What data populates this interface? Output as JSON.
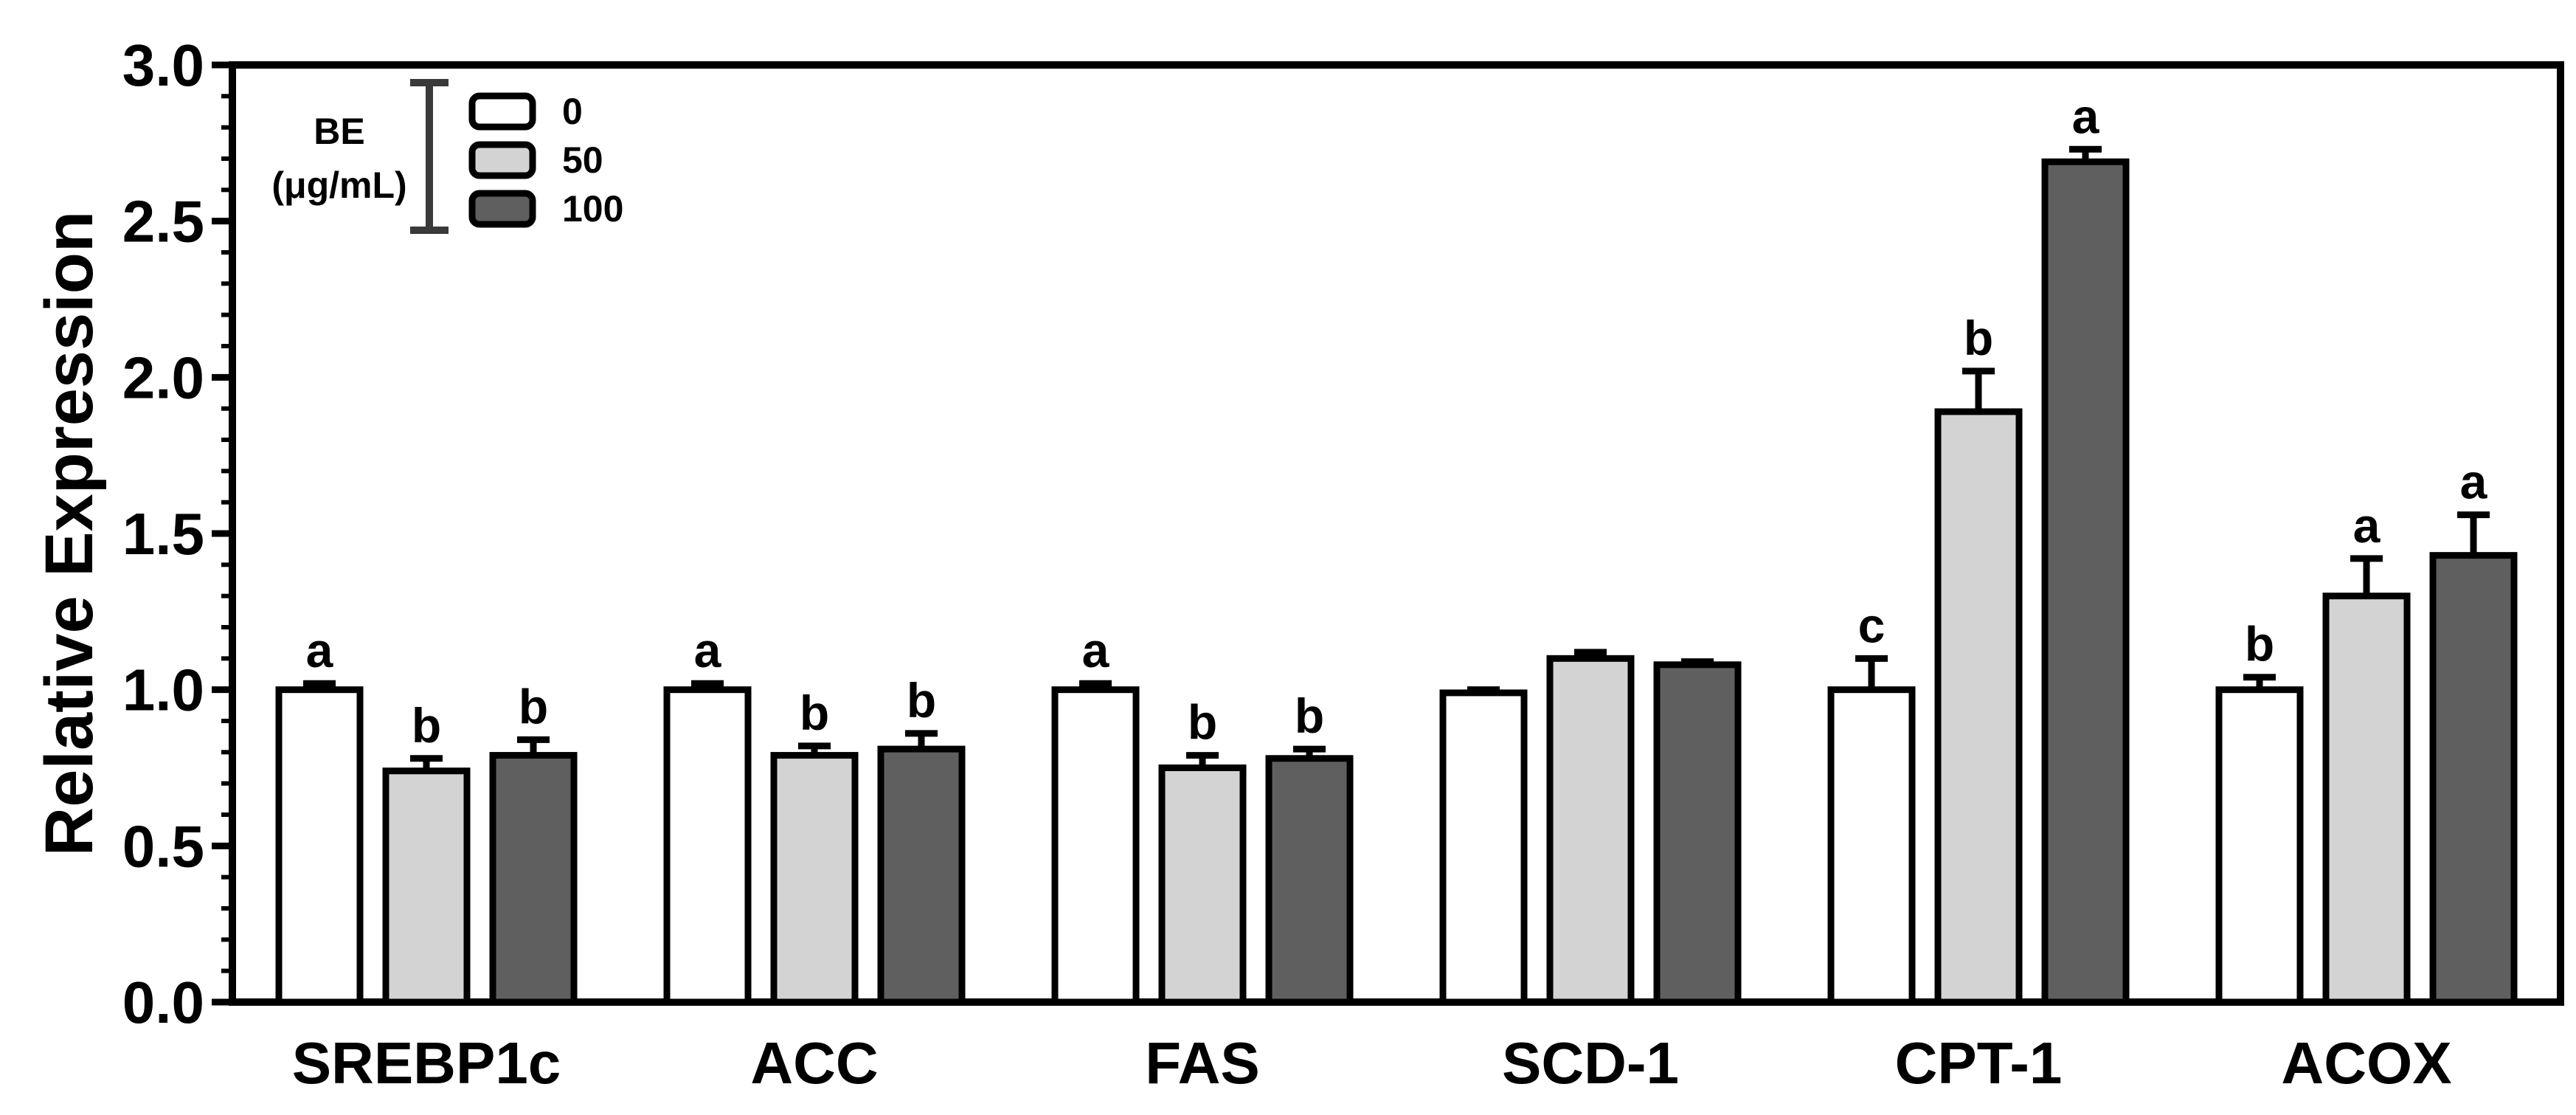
{
  "chart_data": {
    "type": "bar",
    "title": "",
    "xlabel": "",
    "ylabel": "Relative Expression",
    "ylim": [
      0,
      3.0
    ],
    "yticks": [
      "0.0",
      "0.5",
      "1.0",
      "1.5",
      "2.0",
      "2.5",
      "3.0"
    ],
    "grid": false,
    "legend_position": "top-left",
    "legend_title_lines": [
      "BE",
      "(μg/mL)"
    ],
    "categories": [
      "SREBP1c",
      "ACC",
      "FAS",
      "SCD-1",
      "CPT-1",
      "ACOX"
    ],
    "series": [
      {
        "name": "0",
        "color": "#ffffff",
        "values": [
          1.0,
          1.0,
          1.0,
          0.99,
          1.0,
          1.0
        ],
        "errors": [
          0.02,
          0.02,
          0.02,
          0.01,
          0.1,
          0.04
        ],
        "labels": [
          "a",
          "a",
          "a",
          "",
          "c",
          "b"
        ]
      },
      {
        "name": "50",
        "color": "#d3d3d3",
        "values": [
          0.74,
          0.79,
          0.75,
          1.1,
          1.89,
          1.3
        ],
        "errors": [
          0.04,
          0.03,
          0.04,
          0.02,
          0.13,
          0.12
        ],
        "labels": [
          "b",
          "b",
          "b",
          "",
          "b",
          "a"
        ]
      },
      {
        "name": "100",
        "color": "#5f5f5f",
        "values": [
          0.79,
          0.81,
          0.78,
          1.08,
          2.69,
          1.43
        ],
        "errors": [
          0.05,
          0.05,
          0.03,
          0.01,
          0.04,
          0.13
        ],
        "labels": [
          "b",
          "b",
          "b",
          "",
          "a",
          "a"
        ]
      }
    ]
  }
}
